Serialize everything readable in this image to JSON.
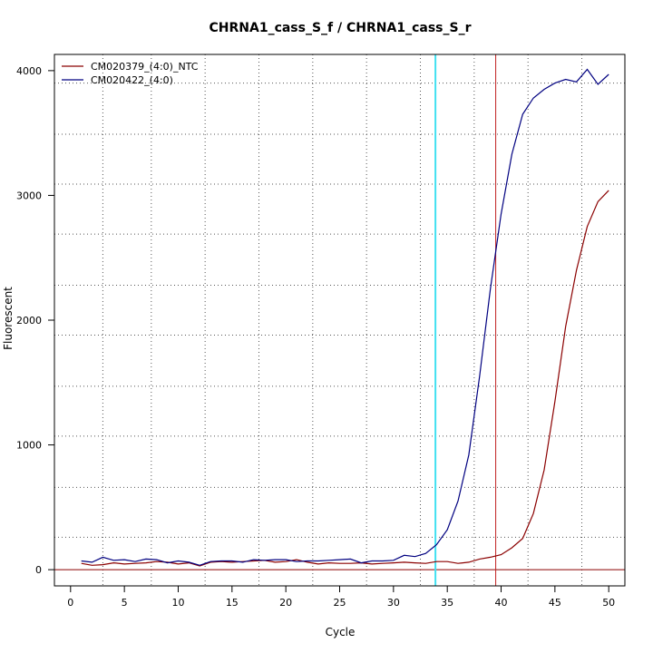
{
  "chart_data": {
    "type": "line",
    "title": "CHRNA1_cass_S_f / CHRNA1_cass_S_r",
    "xlabel": "Cycle",
    "ylabel": "Fluorescent",
    "xlim": [
      -1.5,
      51.5
    ],
    "ylim": [
      -130,
      4130
    ],
    "xticks": [
      0,
      5,
      10,
      15,
      20,
      25,
      30,
      35,
      40,
      45,
      50
    ],
    "yticks": [
      0,
      1000,
      2000,
      3000,
      4000
    ],
    "grid_x_dotted": [
      3,
      7.5,
      12.5,
      17.5,
      22.5,
      27.5,
      32.5,
      37.5,
      42.5,
      47.5
    ],
    "grid_y_dotted": [
      260,
      660,
      1070,
      1470,
      1880,
      2280,
      2690,
      3090,
      3490,
      3900
    ],
    "threshold_line": {
      "y": 0,
      "color": "#8b0000"
    },
    "vertical_lines": [
      {
        "x": 33.9,
        "color": "#40e0f0"
      },
      {
        "x": 39.5,
        "color": "#c02020"
      }
    ],
    "legend_position": "top-left",
    "series": [
      {
        "name": "CM020379_(4:0)_NTC",
        "color": "#8b0000",
        "x": [
          1,
          2,
          3,
          4,
          5,
          6,
          7,
          8,
          9,
          10,
          11,
          12,
          13,
          14,
          15,
          16,
          17,
          18,
          19,
          20,
          21,
          22,
          23,
          24,
          25,
          26,
          27,
          28,
          29,
          30,
          31,
          32,
          33,
          34,
          35,
          36,
          37,
          38,
          39,
          40,
          41,
          42,
          43,
          44,
          45,
          46,
          47,
          48,
          49,
          50
        ],
        "values": [
          50,
          35,
          40,
          55,
          45,
          50,
          55,
          65,
          60,
          45,
          55,
          30,
          60,
          65,
          60,
          65,
          70,
          75,
          60,
          65,
          80,
          60,
          45,
          55,
          50,
          50,
          55,
          45,
          50,
          55,
          60,
          55,
          50,
          65,
          65,
          50,
          60,
          85,
          100,
          120,
          175,
          250,
          450,
          800,
          1350,
          1950,
          2400,
          2750,
          2950,
          3040
        ]
      },
      {
        "name": "CM020422_(4:0)",
        "color": "#000080",
        "x": [
          1,
          2,
          3,
          4,
          5,
          6,
          7,
          8,
          9,
          10,
          11,
          12,
          13,
          14,
          15,
          16,
          17,
          18,
          19,
          20,
          21,
          22,
          23,
          24,
          25,
          26,
          27,
          28,
          29,
          30,
          31,
          32,
          33,
          34,
          35,
          36,
          37,
          38,
          39,
          40,
          41,
          42,
          43,
          44,
          45,
          46,
          47,
          48,
          49,
          50
        ],
        "values": [
          70,
          60,
          100,
          75,
          80,
          65,
          85,
          80,
          55,
          70,
          60,
          35,
          65,
          70,
          70,
          60,
          80,
          75,
          80,
          80,
          65,
          70,
          70,
          75,
          80,
          85,
          55,
          70,
          70,
          75,
          115,
          105,
          130,
          200,
          320,
          550,
          920,
          1550,
          2250,
          2850,
          3330,
          3650,
          3780,
          3850,
          3900,
          3930,
          3910,
          4010,
          3890,
          3970
        ]
      }
    ]
  }
}
